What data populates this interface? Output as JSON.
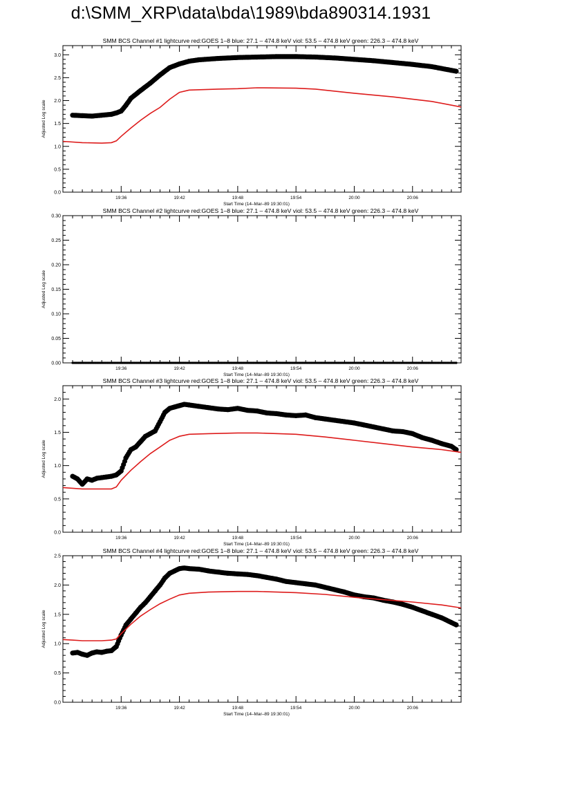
{
  "page_title": "d:\\SMM_XRP\\data\\bda\\1989\\bda890314.1931",
  "colors": {
    "goes": "#dd1b1b",
    "bcs": "#000000",
    "frame": "#000000"
  },
  "chart_data": [
    {
      "type": "scatter",
      "title": "SMM BCS Channel #1 lightcurve  red:GOES 1–8  blue: 27.1 – 474.8 keV  viol: 53.5 – 474.8 keV  green: 226.3 – 474.8 keV",
      "xlabel": "Start Time (14–Mar–89 19:30:01)",
      "ylabel": "Adjusted Log scale",
      "x_unit": "minutes after 19:30:01",
      "xlim": [
        0,
        41
      ],
      "x_ticks": [
        6,
        12,
        18,
        24,
        30,
        36
      ],
      "x_tick_labels": [
        "19:36",
        "19:42",
        "19:48",
        "19:54",
        "20:00",
        "20:06"
      ],
      "ylim": [
        0,
        3.2
      ],
      "y_ticks": [
        0.0,
        0.5,
        1.0,
        1.5,
        2.0,
        2.5,
        3.0
      ],
      "y_tick_labels": [
        "0.0",
        "0.5",
        "1.0",
        "1.5",
        "2.0",
        "2.5",
        "3.0"
      ],
      "series": [
        {
          "kind": "points",
          "x": [
            1,
            2,
            3,
            4,
            5,
            5.5,
            6,
            6.5,
            7,
            8,
            9,
            10,
            11,
            12,
            13,
            14,
            16,
            18,
            20,
            22,
            24,
            26,
            28,
            30,
            32,
            34,
            36,
            38,
            40.5
          ],
          "y": [
            1.68,
            1.67,
            1.66,
            1.68,
            1.7,
            1.73,
            1.77,
            1.9,
            2.05,
            2.22,
            2.38,
            2.56,
            2.72,
            2.8,
            2.86,
            2.89,
            2.92,
            2.94,
            2.95,
            2.96,
            2.96,
            2.95,
            2.93,
            2.9,
            2.87,
            2.83,
            2.79,
            2.74,
            2.64
          ]
        },
        {
          "kind": "line",
          "x": [
            0,
            2,
            4,
            5,
            5.5,
            6,
            7,
            8,
            9,
            10,
            11,
            12,
            13,
            16,
            18,
            20,
            24,
            26,
            30,
            34,
            38,
            41
          ],
          "y": [
            1.11,
            1.08,
            1.07,
            1.08,
            1.12,
            1.22,
            1.4,
            1.57,
            1.72,
            1.85,
            2.03,
            2.18,
            2.23,
            2.25,
            2.26,
            2.28,
            2.27,
            2.25,
            2.16,
            2.08,
            1.98,
            1.86
          ]
        }
      ]
    },
    {
      "type": "scatter",
      "title": "SMM BCS Channel #2 lightcurve  red:GOES 1–8  blue: 27.1 – 474.8 keV  viol: 53.5 – 474.8 keV  green: 226.3 – 474.8 keV",
      "xlabel": "Start Time (14–Mar–89 19:30:01)",
      "ylabel": "Adjusted Log scale",
      "x_unit": "minutes after 19:30:01",
      "xlim": [
        0,
        41
      ],
      "x_ticks": [
        6,
        12,
        18,
        24,
        30,
        36
      ],
      "x_tick_labels": [
        "19:36",
        "19:42",
        "19:48",
        "19:54",
        "20:00",
        "20:06"
      ],
      "ylim": [
        0,
        0.3
      ],
      "y_ticks": [
        0.0,
        0.05,
        0.1,
        0.15,
        0.2,
        0.25,
        0.3
      ],
      "y_tick_labels": [
        "0.00",
        "0.05",
        "0.10",
        "0.15",
        "0.20",
        "0.25",
        "0.30"
      ],
      "series": [
        {
          "kind": "flat",
          "x": [
            1,
            40.5
          ],
          "y": [
            0.0,
            0.0
          ]
        }
      ]
    },
    {
      "type": "scatter",
      "title": "SMM BCS Channel #3 lightcurve  red:GOES 1–8  blue: 27.1 – 474.8 keV  viol: 53.5 – 474.8 keV  green: 226.3 – 474.8 keV",
      "xlabel": "Start Time (14–Mar–89 19:30:01)",
      "ylabel": "Adjusted Log scale",
      "x_unit": "minutes after 19:30:01",
      "xlim": [
        0,
        41
      ],
      "x_ticks": [
        6,
        12,
        18,
        24,
        30,
        36
      ],
      "x_tick_labels": [
        "19:36",
        "19:42",
        "19:48",
        "19:54",
        "20:00",
        "20:06"
      ],
      "ylim": [
        0,
        2.2
      ],
      "y_ticks": [
        0.0,
        0.5,
        1.0,
        1.5,
        2.0
      ],
      "y_tick_labels": [
        "0.0",
        "0.5",
        "1.0",
        "1.5",
        "2.0"
      ],
      "series": [
        {
          "kind": "points",
          "x": [
            1,
            1.5,
            2,
            2.5,
            3,
            3.5,
            4,
            4.5,
            5,
            5.5,
            6,
            6.5,
            7,
            7.5,
            8,
            8.5,
            9,
            9.5,
            10,
            10.5,
            11,
            11.5,
            12,
            12.5,
            13,
            14,
            15,
            16,
            17,
            18,
            19,
            20,
            21,
            22,
            23,
            24,
            25,
            26,
            27,
            28,
            29,
            30,
            31,
            32,
            33,
            34,
            35,
            36,
            37,
            38,
            39,
            40,
            40.5
          ],
          "y": [
            0.84,
            0.8,
            0.72,
            0.8,
            0.78,
            0.81,
            0.82,
            0.83,
            0.84,
            0.86,
            0.92,
            1.12,
            1.24,
            1.28,
            1.36,
            1.44,
            1.48,
            1.52,
            1.66,
            1.8,
            1.86,
            1.88,
            1.9,
            1.92,
            1.91,
            1.89,
            1.87,
            1.85,
            1.84,
            1.86,
            1.83,
            1.82,
            1.79,
            1.78,
            1.76,
            1.75,
            1.76,
            1.72,
            1.7,
            1.68,
            1.66,
            1.64,
            1.61,
            1.58,
            1.55,
            1.52,
            1.51,
            1.48,
            1.42,
            1.38,
            1.33,
            1.29,
            1.24
          ]
        },
        {
          "kind": "line",
          "x": [
            0,
            1,
            2,
            3,
            4,
            5,
            5.5,
            6,
            7,
            8,
            9,
            10,
            11,
            12,
            13,
            15,
            18,
            20,
            24,
            27,
            30,
            33,
            36,
            39,
            41
          ],
          "y": [
            0.67,
            0.66,
            0.65,
            0.65,
            0.65,
            0.65,
            0.68,
            0.78,
            0.93,
            1.06,
            1.18,
            1.28,
            1.38,
            1.44,
            1.47,
            1.48,
            1.49,
            1.49,
            1.47,
            1.43,
            1.38,
            1.33,
            1.28,
            1.24,
            1.2
          ]
        }
      ]
    },
    {
      "type": "scatter",
      "title": "SMM BCS Channel #4 lightcurve  red:GOES 1–8  blue: 27.1 – 474.8 keV  viol: 53.5 – 474.8 keV  green: 226.3 – 474.8 keV",
      "xlabel": "Start Time (14–Mar–89 19:30:01)",
      "ylabel": "Adjusted Log scale",
      "x_unit": "minutes after 19:30:01",
      "xlim": [
        0,
        41
      ],
      "x_ticks": [
        6,
        12,
        18,
        24,
        30,
        36
      ],
      "x_tick_labels": [
        "19:36",
        "19:42",
        "19:48",
        "19:54",
        "20:00",
        "20:06"
      ],
      "ylim": [
        0,
        2.5
      ],
      "y_ticks": [
        0.0,
        0.5,
        1.0,
        1.5,
        2.0,
        2.5
      ],
      "y_tick_labels": [
        "0.0",
        "0.5",
        "1.0",
        "1.5",
        "2.0",
        "2.5"
      ],
      "series": [
        {
          "kind": "points",
          "x": [
            1,
            1.5,
            2,
            2.5,
            3,
            3.5,
            4,
            4.5,
            5,
            5.5,
            6,
            6.5,
            7,
            7.5,
            8,
            8.5,
            9,
            9.5,
            10,
            10.5,
            11,
            11.5,
            12,
            12.5,
            13,
            14,
            15,
            16,
            17,
            18,
            19,
            20,
            21,
            22,
            23,
            24,
            25,
            26,
            27,
            28,
            29,
            30,
            31,
            32,
            33,
            34,
            35,
            36,
            37,
            38,
            39,
            40,
            40.5
          ],
          "y": [
            0.84,
            0.85,
            0.82,
            0.8,
            0.84,
            0.86,
            0.85,
            0.87,
            0.88,
            0.95,
            1.15,
            1.32,
            1.42,
            1.52,
            1.62,
            1.7,
            1.8,
            1.9,
            2.0,
            2.12,
            2.2,
            2.24,
            2.28,
            2.29,
            2.28,
            2.27,
            2.24,
            2.22,
            2.2,
            2.19,
            2.18,
            2.16,
            2.13,
            2.1,
            2.06,
            2.04,
            2.02,
            2.0,
            1.96,
            1.92,
            1.88,
            1.83,
            1.8,
            1.78,
            1.74,
            1.71,
            1.67,
            1.62,
            1.56,
            1.5,
            1.44,
            1.36,
            1.32
          ]
        },
        {
          "kind": "line",
          "x": [
            0,
            1,
            2,
            3,
            4,
            5,
            5.5,
            6,
            7,
            8,
            9,
            10,
            11,
            12,
            13,
            15,
            18,
            20,
            24,
            27,
            30,
            33,
            36,
            39,
            41
          ],
          "y": [
            1.07,
            1.06,
            1.05,
            1.05,
            1.05,
            1.06,
            1.08,
            1.17,
            1.33,
            1.47,
            1.58,
            1.68,
            1.76,
            1.83,
            1.86,
            1.88,
            1.89,
            1.89,
            1.87,
            1.84,
            1.79,
            1.75,
            1.71,
            1.66,
            1.61
          ]
        }
      ]
    }
  ]
}
